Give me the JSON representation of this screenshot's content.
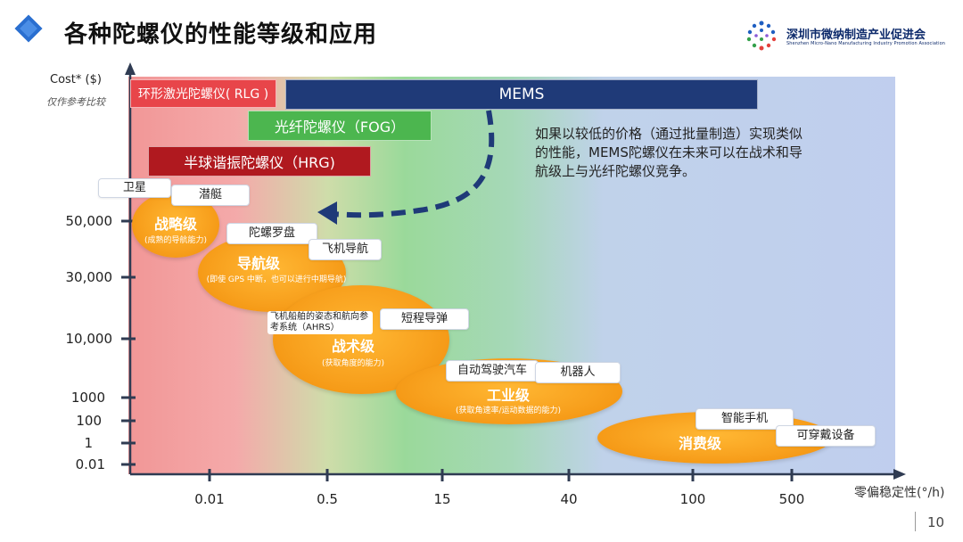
{
  "header": {
    "title": "各种陀螺仪的性能等级和应用",
    "logo_text": "深圳市微纳制造产业促进会",
    "logo_sub": "Shenzhen Micro-Nano Manufacturing Industry Promotion Association"
  },
  "chart_data": {
    "type": "bubble",
    "y_axis": {
      "label": "Cost* ($)",
      "note": "仅作参考比较",
      "ticks": [
        "50,000",
        "30,000",
        "10,000",
        "1000",
        "100",
        "1",
        "0.01"
      ]
    },
    "x_axis": {
      "label": "零偏稳定性(°/h)",
      "ticks": [
        "0.01",
        "0.5",
        "15",
        "40",
        "100",
        "500"
      ]
    },
    "technology_bars": [
      {
        "name": "环形激光陀螺仪( RLG )",
        "color": "#e8454a"
      },
      {
        "name": "MEMS",
        "color": "#1f3a78"
      },
      {
        "name": "光纤陀螺仪（FOG）",
        "color": "#4cb64f"
      },
      {
        "name": "半球谐振陀螺仪（HRG)",
        "color": "#b0191f"
      }
    ],
    "grades": [
      {
        "name": "战略级",
        "note": "(成熟的导航能力)",
        "applications": [
          "卫星",
          "潜艇"
        ]
      },
      {
        "name": "导航级",
        "note": "(即使 GPS 中断，也可以进行中期导航)",
        "applications": [
          "陀螺罗盘",
          "飞机导航"
        ]
      },
      {
        "name": "战术级",
        "note": "(获取角度的能力)",
        "applications": [
          "飞机船舶的姿态和航向参考系统（AHRS）",
          "短程导弹"
        ]
      },
      {
        "name": "工业级",
        "note": "(获取角速率/运动数据的能力)",
        "applications": [
          "自动驾驶汽车",
          "机器人"
        ]
      },
      {
        "name": "消费级",
        "note": "",
        "applications": [
          "智能手机",
          "可穿戴设备"
        ]
      }
    ],
    "callout": "如果以较低的价格（通过批量制造）实现类似的性能，MEMS陀螺仪在未来可以在战术和导航级上与光纤陀螺仪竞争。"
  },
  "footer": {
    "page_number": "10"
  },
  "colors": {
    "zone_red": "#f08b8b",
    "zone_green": "#8fd58f",
    "zone_blue": "#b9c9ec",
    "ellipse": "#f8a11e",
    "arrow": "#1f3a78"
  }
}
